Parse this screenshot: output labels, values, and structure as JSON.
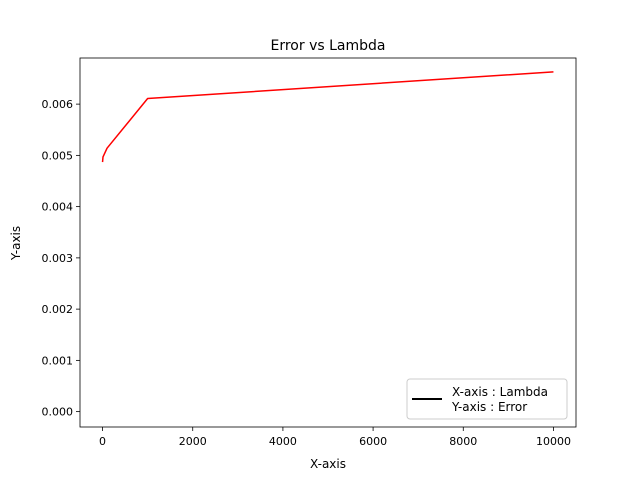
{
  "chart_data": {
    "type": "line",
    "title": "Error vs Lambda",
    "xlabel": "X-axis",
    "ylabel": "Y-axis",
    "xlim": [
      -500,
      10500
    ],
    "ylim": [
      -0.0003,
      0.0069
    ],
    "xticks": [
      0,
      2000,
      4000,
      6000,
      8000,
      10000
    ],
    "xtick_labels": [
      "0",
      "2000",
      "4000",
      "6000",
      "8000",
      "10000"
    ],
    "yticks": [
      0,
      0.001,
      0.002,
      0.003,
      0.004,
      0.005,
      0.006
    ],
    "ytick_labels": [
      "0.000",
      "0.001",
      "0.002",
      "0.003",
      "0.004",
      "0.005",
      "0.006"
    ],
    "grid": false,
    "legend": {
      "placement": "lower right",
      "handle_color": "#000000",
      "entries": [
        "X-axis : Lambda",
        "Y-axis : Error"
      ]
    },
    "series": [
      {
        "color": "#ff0000",
        "x": [
          0,
          10,
          100,
          1000,
          10000
        ],
        "y": [
          0.00487,
          0.00497,
          0.00514,
          0.00611,
          0.00663
        ]
      }
    ]
  }
}
